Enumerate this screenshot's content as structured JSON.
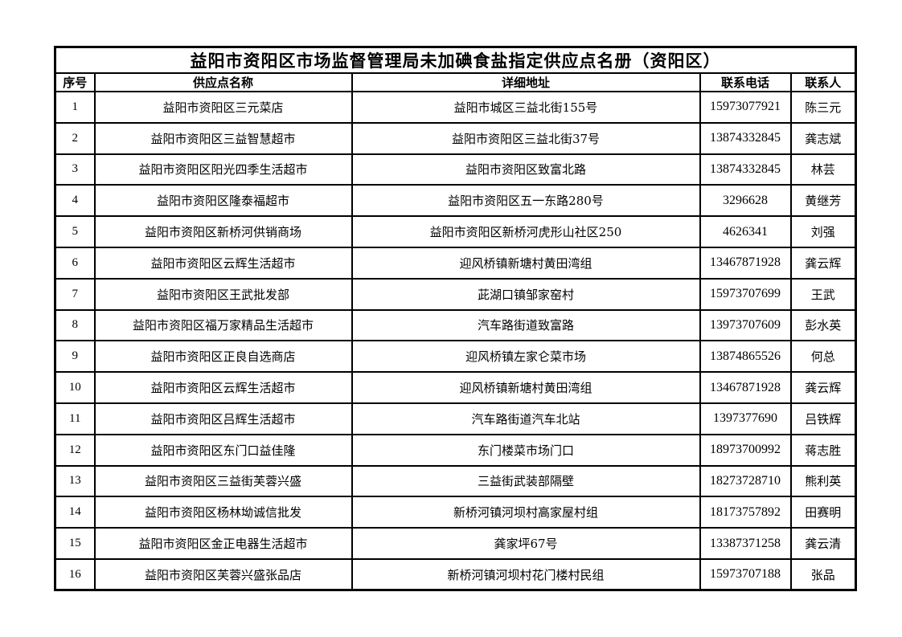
{
  "page": {
    "background_color": "#ffffff",
    "text_color": "#000000",
    "border_color": "#000000"
  },
  "table": {
    "title": "益阳市资阳区市场监督管理局未加碘食盐指定供应点名册（资阳区）",
    "columns": [
      "序号",
      "供应点名称",
      "详细地址",
      "联系电话",
      "联系人"
    ],
    "rows": [
      {
        "no": "1",
        "name": "益阳市资阳区三元菜店",
        "address": "益阳市城区三益北街155号",
        "phone": "15973077921",
        "contact": "陈三元"
      },
      {
        "no": "2",
        "name": "益阳市资阳区三益智慧超市",
        "address": "益阳市资阳区三益北街37号",
        "phone": "13874332845",
        "contact": "龚志斌"
      },
      {
        "no": "3",
        "name": "益阳市资阳区阳光四季生活超市",
        "address": "益阳市资阳区致富北路",
        "phone": "13874332845",
        "contact": "林芸"
      },
      {
        "no": "4",
        "name": "益阳市资阳区隆泰福超市",
        "address": "益阳市资阳区五一东路280号",
        "phone": "3296628",
        "contact": "黄继芳"
      },
      {
        "no": "5",
        "name": "益阳市资阳区新桥河供销商场",
        "address": "益阳市资阳区新桥河虎形山社区250",
        "phone": "4626341",
        "contact": "刘强"
      },
      {
        "no": "6",
        "name": "益阳市资阳区云辉生活超市",
        "address": "迎风桥镇新塘村黄田湾组",
        "phone": "13467871928",
        "contact": "龚云辉"
      },
      {
        "no": "7",
        "name": "益阳市资阳区王武批发部",
        "address": "茈湖口镇邹家窑村",
        "phone": "15973707699",
        "contact": "王武"
      },
      {
        "no": "8",
        "name": "益阳市资阳区福万家精品生活超市",
        "address": "汽车路街道致富路",
        "phone": "13973707609",
        "contact": "彭水英"
      },
      {
        "no": "9",
        "name": "益阳市资阳区正良自选商店",
        "address": "迎风桥镇左家仑菜市场",
        "phone": "13874865526",
        "contact": "何总"
      },
      {
        "no": "10",
        "name": "益阳市资阳区云辉生活超市",
        "address": "迎风桥镇新塘村黄田湾组",
        "phone": "13467871928",
        "contact": "龚云辉"
      },
      {
        "no": "11",
        "name": "益阳市资阳区吕辉生活超市",
        "address": "汽车路街道汽车北站",
        "phone": "1397377690",
        "contact": "吕铁辉"
      },
      {
        "no": "12",
        "name": "益阳市资阳区东门口益佳隆",
        "address": "东门楼菜市场门口",
        "phone": "18973700992",
        "contact": "蒋志胜"
      },
      {
        "no": "13",
        "name": "益阳市资阳区三益街芙蓉兴盛",
        "address": "三益街武装部隔壁",
        "phone": "18273728710",
        "contact": "熊利英"
      },
      {
        "no": "14",
        "name": "益阳市资阳区杨林坳诚信批发",
        "address": "新桥河镇河坝村高家屋村组",
        "phone": "18173757892",
        "contact": "田赛明"
      },
      {
        "no": "15",
        "name": "益阳市资阳区金正电器生活超市",
        "address": "龚家坪67号",
        "phone": "13387371258",
        "contact": "龚云清"
      },
      {
        "no": "16",
        "name": "益阳市资阳区芙蓉兴盛张品店",
        "address": "新桥河镇河坝村花门楼村民组",
        "phone": "15973707188",
        "contact": "张品"
      }
    ]
  }
}
